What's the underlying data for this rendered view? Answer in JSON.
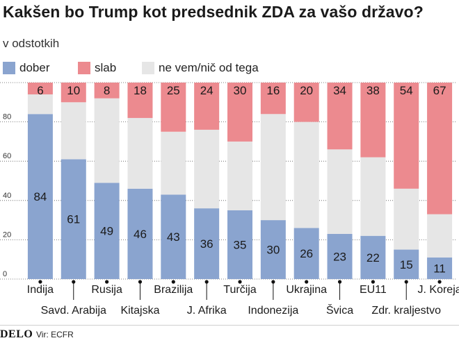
{
  "chart_data": {
    "type": "bar",
    "stacked": true,
    "title": "Kakšen bo Trump kot predsednik ZDA za vašo državo?",
    "subtitle": "v odstotkih",
    "ylim": [
      0,
      100
    ],
    "yticks": [
      0,
      20,
      40,
      60,
      80
    ],
    "categories": [
      "Indija",
      "Savd. Arabija",
      "Rusija",
      "Kitajska",
      "Brazilija",
      "J. Afrika",
      "Turčija",
      "Indonezija",
      "Ukrajina",
      "Švica",
      "EU11",
      "Zdr. kraljestvo",
      "J. Koreja"
    ],
    "series": [
      {
        "name": "dober",
        "color": "#8aa4cf",
        "values": [
          84,
          61,
          49,
          46,
          43,
          36,
          35,
          30,
          26,
          23,
          22,
          15,
          11
        ]
      },
      {
        "name": "ne vem/nič od tega",
        "color": "#e6e6e6",
        "values": [
          10,
          29,
          43,
          36,
          32,
          40,
          35,
          54,
          54,
          43,
          40,
          31,
          22
        ],
        "labeled": false
      },
      {
        "name": "slab",
        "color": "#ec8a8f",
        "values": [
          6,
          10,
          8,
          18,
          25,
          24,
          30,
          16,
          20,
          34,
          38,
          54,
          67
        ]
      }
    ],
    "legend": [
      {
        "name": "dober",
        "color": "#8aa4cf"
      },
      {
        "name": "slab",
        "color": "#ec8a8f"
      },
      {
        "name": "ne vem/nič od tega",
        "color": "#e6e6e6"
      }
    ]
  },
  "footer": {
    "brand": "DELO",
    "source": "Vir: ECFR"
  }
}
